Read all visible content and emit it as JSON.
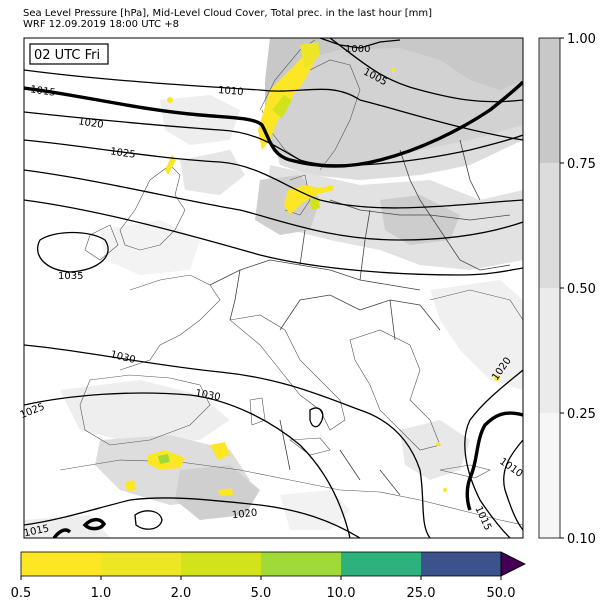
{
  "title_line1": "Sea Level Pressure [hPa], Mid-Level Cloud Cover, Total prec. in the last hour [mm]",
  "title_line2": "WRF 12.09.2019 18:00 UTC +8",
  "time_label": "02 UTC Fri",
  "isobar_labels": [
    "1000",
    "1005",
    "1010",
    "1015",
    "1020",
    "1025",
    "1030",
    "1035",
    "1030",
    "1025",
    "1020",
    "1015",
    "1010",
    "1015",
    "1020"
  ],
  "cloud_colorbar": {
    "ticks": [
      "1.00",
      "0.75",
      "0.50",
      "0.25",
      "0.10"
    ],
    "colors": [
      "#c8c8c8",
      "#dcdcdc",
      "#ebebeb",
      "#f6f6f6"
    ]
  },
  "precip_colorbar": {
    "ticks": [
      "0.5",
      "1.0",
      "2.0",
      "5.0",
      "10.0",
      "25.0",
      "50.0"
    ],
    "colors": [
      "#fde725",
      "#ece625",
      "#d2e21b",
      "#a0da39",
      "#2db27d",
      "#3b528b",
      "#440154"
    ]
  }
}
